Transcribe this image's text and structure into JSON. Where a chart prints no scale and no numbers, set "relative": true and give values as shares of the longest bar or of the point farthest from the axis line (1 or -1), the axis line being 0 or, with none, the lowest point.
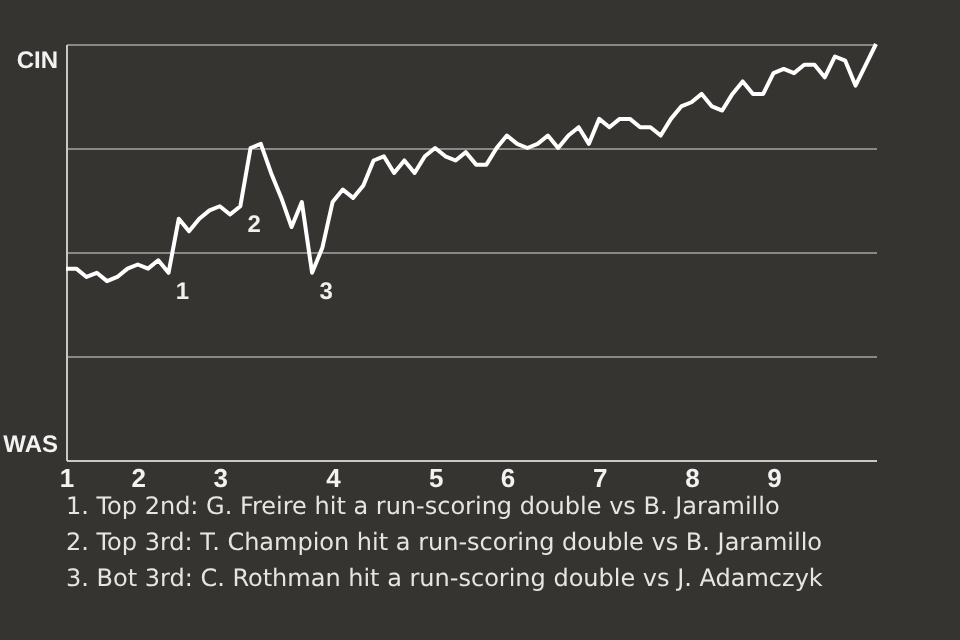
{
  "chart_data": {
    "type": "line",
    "relative": true,
    "categories": [
      "1",
      null,
      null,
      null,
      null,
      null,
      null,
      "2",
      null,
      null,
      null,
      null,
      null,
      null,
      null,
      "3",
      null,
      null,
      null,
      null,
      null,
      null,
      null,
      null,
      null,
      null,
      "4",
      null,
      null,
      null,
      null,
      null,
      null,
      null,
      null,
      null,
      "5",
      null,
      null,
      null,
      null,
      null,
      null,
      "6",
      null,
      null,
      null,
      null,
      null,
      null,
      null,
      null,
      "7",
      null,
      null,
      null,
      null,
      null,
      null,
      null,
      null,
      "8",
      null,
      null,
      null,
      null,
      null,
      null,
      null,
      "9",
      null,
      null,
      null,
      null,
      null,
      null,
      null,
      null,
      null,
      null
    ],
    "series": [
      {
        "color": "#ffffff",
        "values": [
          0.46,
          0.46,
          0.44,
          0.45,
          0.43,
          0.44,
          0.46,
          0.47,
          0.46,
          0.48,
          0.45,
          0.58,
          0.55,
          0.58,
          0.6,
          0.61,
          0.59,
          0.61,
          0.75,
          0.76,
          0.69,
          0.63,
          0.56,
          0.62,
          0.45,
          0.51,
          0.62,
          0.65,
          0.63,
          0.66,
          0.72,
          0.73,
          0.69,
          0.72,
          0.69,
          0.73,
          0.75,
          0.73,
          0.72,
          0.74,
          0.71,
          0.71,
          0.75,
          0.78,
          0.76,
          0.75,
          0.76,
          0.78,
          0.75,
          0.78,
          0.8,
          0.76,
          0.82,
          0.8,
          0.82,
          0.82,
          0.8,
          0.8,
          0.78,
          0.82,
          0.85,
          0.86,
          0.88,
          0.85,
          0.84,
          0.88,
          0.91,
          0.88,
          0.88,
          0.93,
          0.94,
          0.93,
          0.95,
          0.95,
          0.92,
          0.97,
          0.96,
          0.9,
          0.95,
          1
        ]
      }
    ],
    "grid": "y",
    "annotations": [
      "CIN",
      "WAS",
      "1",
      "2",
      "3",
      "1. Top 2nd: G. Freire hit a run-scoring double vs B. Jaramillo",
      "2. Top 3rd: T. Champion hit a run-scoring double vs B. Jaramillo",
      "3. Bot 3rd: C. Rothman hit a run-scoring double vs J. Adamczyk"
    ]
  }
}
